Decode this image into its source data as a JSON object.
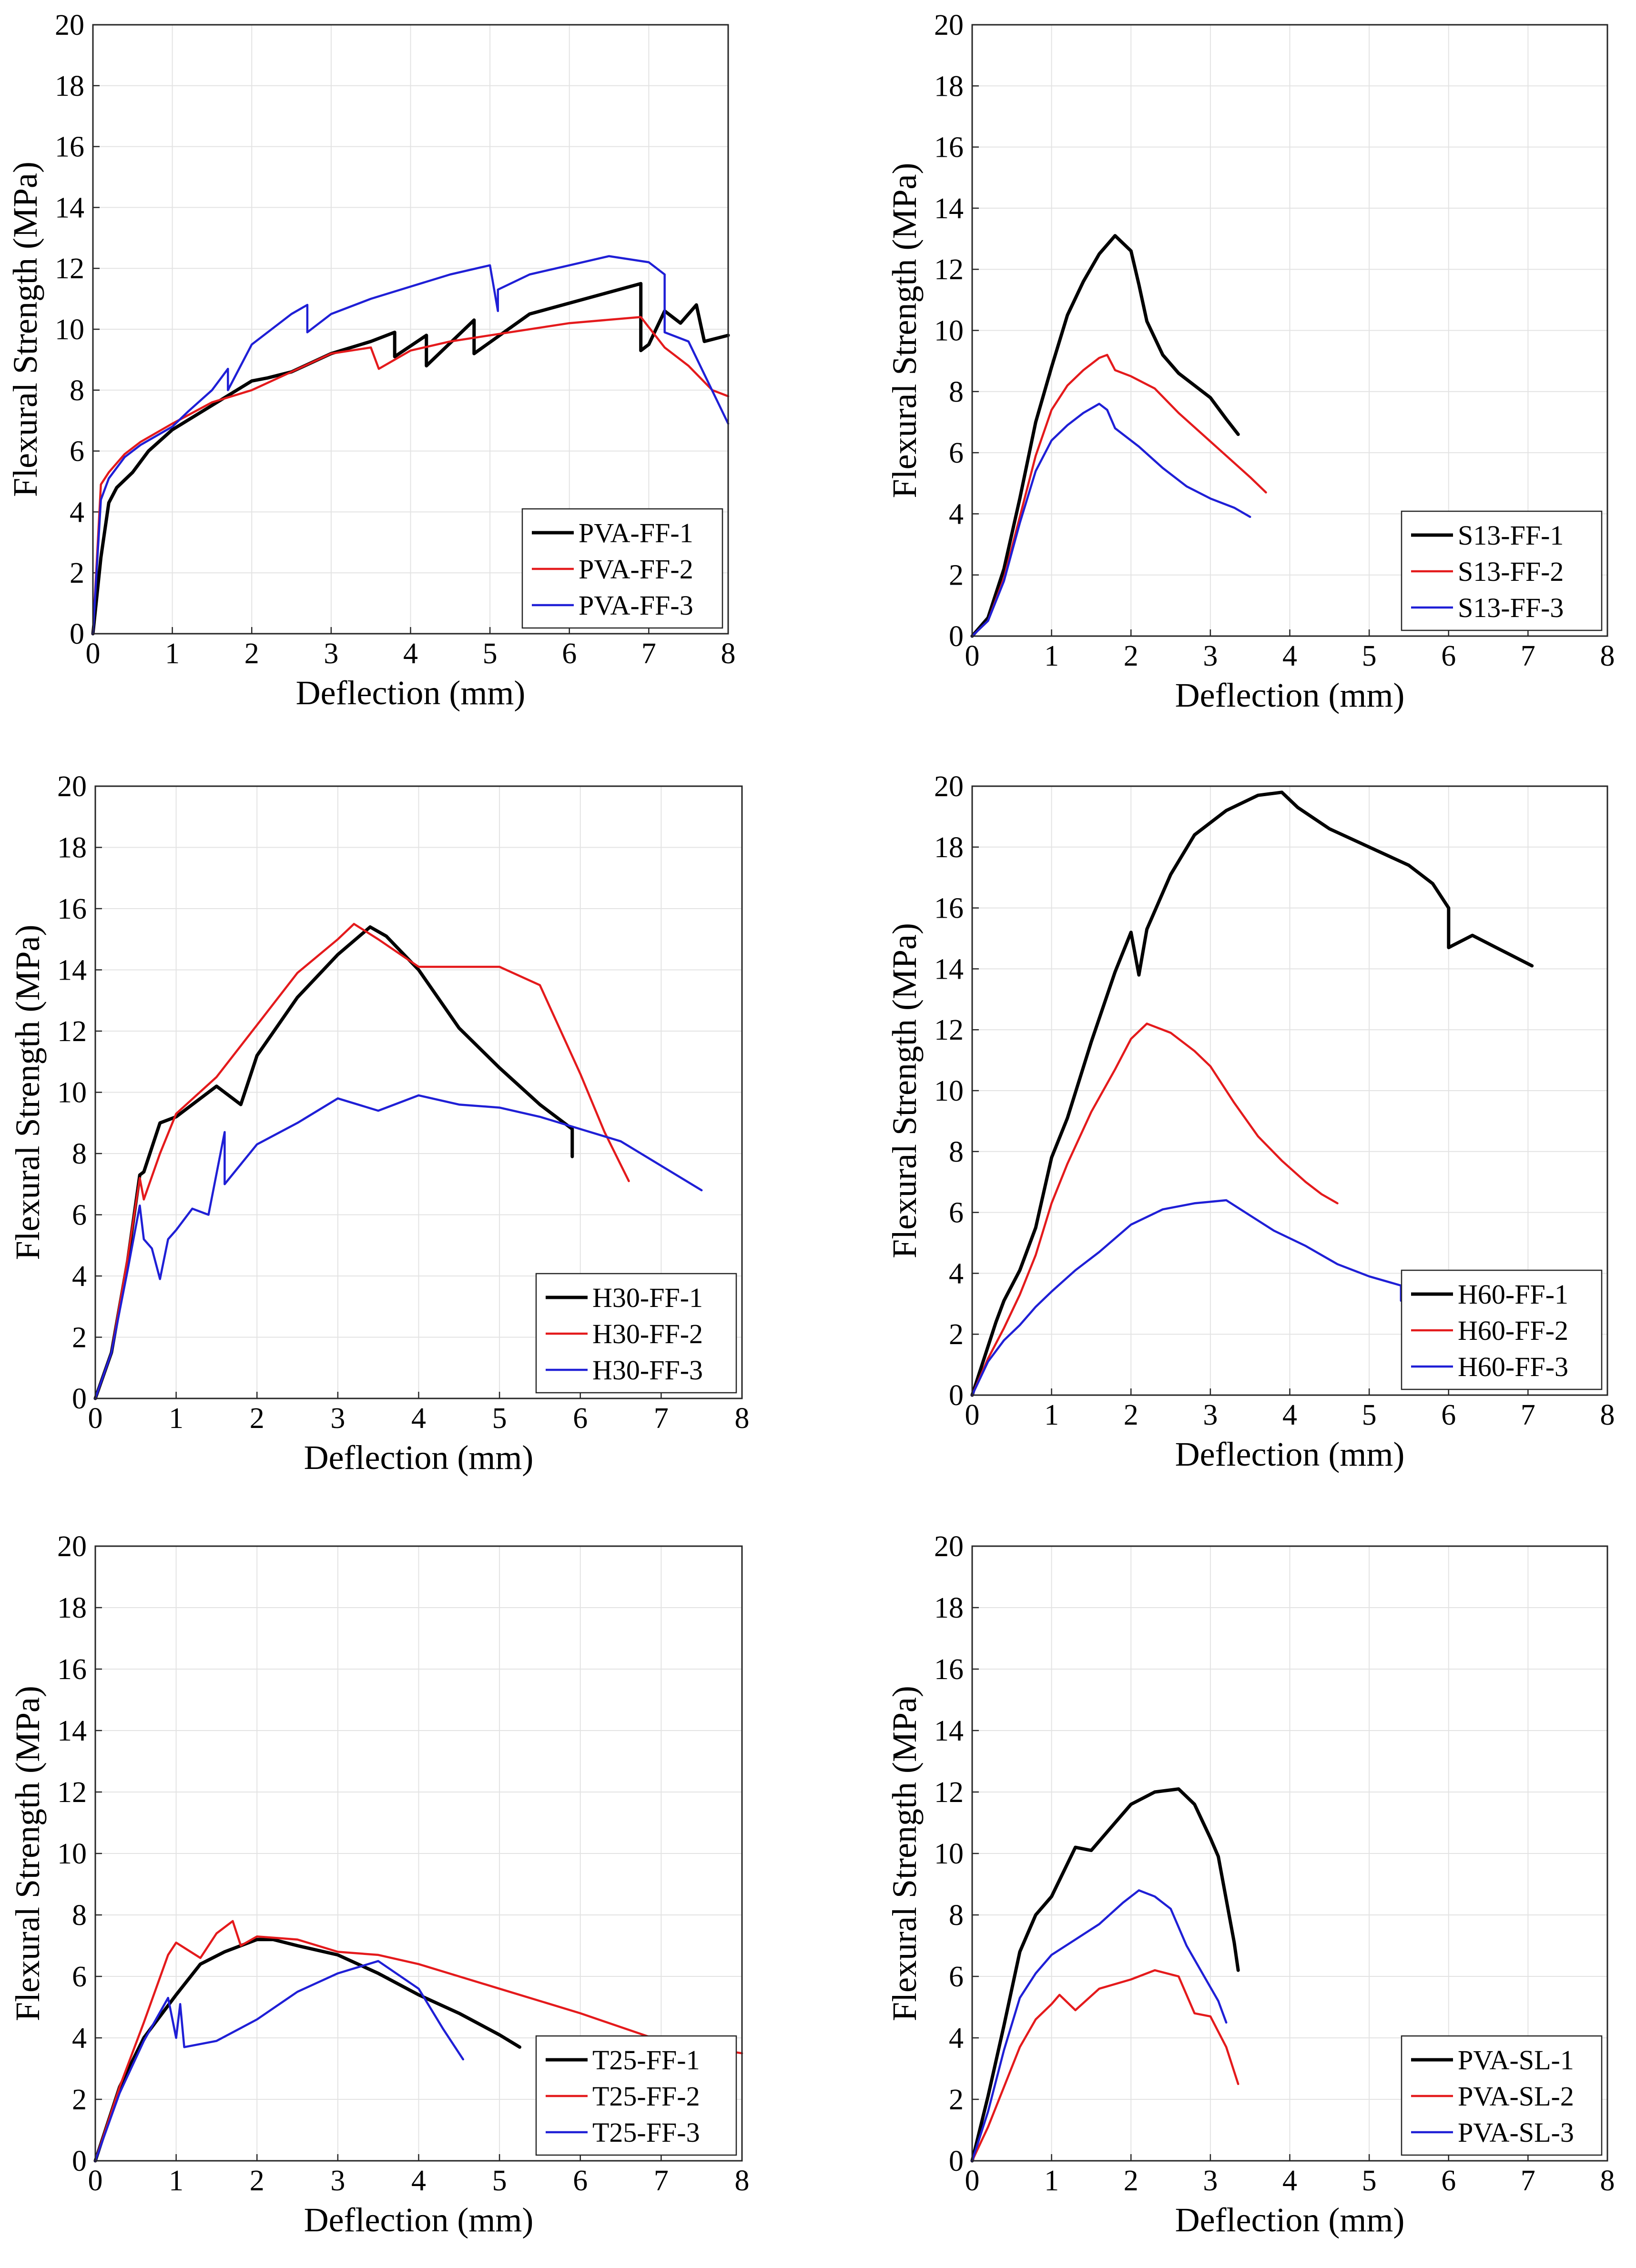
{
  "colors": {
    "series1": "#000000",
    "series2": "#e41a1c",
    "series3": "#1f1fd6"
  },
  "chart_data": [
    {
      "type": "line",
      "xlabel": "Deflection (mm)",
      "ylabel": "Flexural Strength (MPa)",
      "xlim": [
        0,
        8
      ],
      "ylim": [
        0,
        20
      ],
      "xticks": [
        "0",
        "1",
        "2",
        "3",
        "4",
        "5",
        "6",
        "7",
        "8"
      ],
      "yticks": [
        "0",
        "2",
        "4",
        "6",
        "8",
        "10",
        "12",
        "14",
        "16",
        "18",
        "20"
      ],
      "grid": true,
      "legend_position": "bottom-right",
      "series": [
        {
          "name": "PVA-FF-1",
          "x": [
            0,
            0.1,
            0.2,
            0.3,
            0.5,
            0.7,
            1,
            1.5,
            2,
            2.2,
            2.5,
            3,
            3.5,
            3.8,
            3.8,
            4.2,
            4.2,
            4.8,
            4.8,
            5.5,
            6.9,
            6.9,
            7,
            7.2,
            7.4,
            7.6,
            7.7,
            8
          ],
          "y": [
            0,
            2.5,
            4.3,
            4.8,
            5.3,
            6,
            6.7,
            7.5,
            8.3,
            8.4,
            8.6,
            9.2,
            9.6,
            9.9,
            9.1,
            9.8,
            8.8,
            10.3,
            9.2,
            10.5,
            11.5,
            9.3,
            9.5,
            10.6,
            10.2,
            10.8,
            9.6,
            9.8
          ]
        },
        {
          "name": "PVA-FF-2",
          "x": [
            0,
            0.1,
            0.2,
            0.4,
            0.6,
            1,
            1.5,
            2,
            2.5,
            3,
            3.5,
            3.6,
            4,
            4.5,
            5,
            6,
            6.9,
            7.2,
            7.5,
            7.8,
            8
          ],
          "y": [
            0,
            4.9,
            5.3,
            5.9,
            6.3,
            6.9,
            7.6,
            8,
            8.6,
            9.2,
            9.4,
            8.7,
            9.3,
            9.6,
            9.8,
            10.2,
            10.4,
            9.4,
            8.8,
            8,
            7.8
          ]
        },
        {
          "name": "PVA-FF-3",
          "x": [
            0,
            0.1,
            0.2,
            0.4,
            0.6,
            1,
            1.2,
            1.5,
            1.7,
            1.7,
            2,
            2.5,
            2.7,
            2.7,
            3,
            3.5,
            4,
            4.5,
            5,
            5.1,
            5.1,
            5.5,
            6,
            6.5,
            7,
            7.2,
            7.2,
            7.5,
            8
          ],
          "y": [
            0,
            4.4,
            5.1,
            5.8,
            6.2,
            6.8,
            7.3,
            8,
            8.7,
            8,
            9.5,
            10.5,
            10.8,
            9.9,
            10.5,
            11,
            11.4,
            11.8,
            12.1,
            10.6,
            11.3,
            11.8,
            12.1,
            12.4,
            12.2,
            11.8,
            9.9,
            9.6,
            6.9
          ]
        }
      ]
    },
    {
      "type": "line",
      "xlabel": "Deflection (mm)",
      "ylabel": "Flexural Strength (MPa)",
      "xlim": [
        0,
        8
      ],
      "ylim": [
        0,
        20
      ],
      "xticks": [
        "0",
        "1",
        "2",
        "3",
        "4",
        "5",
        "6",
        "7",
        "8"
      ],
      "yticks": [
        "0",
        "2",
        "4",
        "6",
        "8",
        "10",
        "12",
        "14",
        "16",
        "18",
        "20"
      ],
      "grid": true,
      "legend_position": "bottom-right",
      "series": [
        {
          "name": "S13-FF-1",
          "x": [
            0,
            0.2,
            0.4,
            0.6,
            0.8,
            1,
            1.2,
            1.4,
            1.6,
            1.8,
            2,
            2.1,
            2.2,
            2.4,
            2.6,
            2.8,
            3,
            3.2,
            3.35
          ],
          "y": [
            0,
            0.6,
            2.2,
            4.5,
            7,
            8.8,
            10.5,
            11.6,
            12.5,
            13.1,
            12.6,
            11.5,
            10.3,
            9.2,
            8.6,
            8.2,
            7.8,
            7.1,
            6.6
          ]
        },
        {
          "name": "S13-FF-2",
          "x": [
            0,
            0.2,
            0.4,
            0.6,
            0.8,
            1,
            1.2,
            1.4,
            1.6,
            1.7,
            1.8,
            2,
            2.3,
            2.6,
            2.9,
            3.2,
            3.5,
            3.7
          ],
          "y": [
            0,
            0.5,
            1.9,
            3.9,
            5.9,
            7.4,
            8.2,
            8.7,
            9.1,
            9.2,
            8.7,
            8.5,
            8.1,
            7.3,
            6.6,
            5.9,
            5.2,
            4.7
          ]
        },
        {
          "name": "S13-FF-3",
          "x": [
            0,
            0.2,
            0.4,
            0.6,
            0.8,
            1,
            1.2,
            1.4,
            1.6,
            1.7,
            1.8,
            2.1,
            2.4,
            2.7,
            3,
            3.3,
            3.5
          ],
          "y": [
            0,
            0.5,
            1.8,
            3.7,
            5.4,
            6.4,
            6.9,
            7.3,
            7.6,
            7.4,
            6.8,
            6.2,
            5.5,
            4.9,
            4.5,
            4.2,
            3.9
          ]
        }
      ]
    },
    {
      "type": "line",
      "xlabel": "Deflection (mm)",
      "ylabel": "Flexural Strength (MPa)",
      "xlim": [
        0,
        8
      ],
      "ylim": [
        0,
        20
      ],
      "xticks": [
        "0",
        "1",
        "2",
        "3",
        "4",
        "5",
        "6",
        "7",
        "8"
      ],
      "yticks": [
        "0",
        "2",
        "4",
        "6",
        "8",
        "10",
        "12",
        "14",
        "16",
        "18",
        "20"
      ],
      "grid": true,
      "legend_position": "bottom-right",
      "series": [
        {
          "name": "H30-FF-1",
          "x": [
            0,
            0.2,
            0.4,
            0.55,
            0.6,
            0.8,
            1,
            1.2,
            1.5,
            1.8,
            2,
            2.5,
            3,
            3.4,
            3.6,
            4,
            4.5,
            5,
            5.5,
            5.9,
            5.9
          ],
          "y": [
            0,
            1.5,
            4.5,
            7.3,
            7.4,
            9,
            9.2,
            9.6,
            10.2,
            9.6,
            11.2,
            13.1,
            14.5,
            15.4,
            15.1,
            14,
            12.1,
            10.8,
            9.6,
            8.8,
            7.9
          ]
        },
        {
          "name": "H30-FF-2",
          "x": [
            0,
            0.2,
            0.4,
            0.55,
            0.6,
            0.8,
            1,
            1.5,
            2,
            2.5,
            3,
            3.2,
            3.5,
            4,
            4.5,
            5,
            5.5,
            6,
            6.3,
            6.6
          ],
          "y": [
            0,
            1.5,
            4.6,
            7.2,
            6.5,
            8,
            9.3,
            10.5,
            12.2,
            13.9,
            15,
            15.5,
            15,
            14.1,
            14.1,
            14.1,
            13.5,
            10.6,
            8.7,
            7.1
          ]
        },
        {
          "name": "H30-FF-3",
          "x": [
            0,
            0.2,
            0.4,
            0.55,
            0.6,
            0.7,
            0.8,
            0.9,
            1,
            1.2,
            1.4,
            1.6,
            1.6,
            2,
            2.5,
            3,
            3.5,
            4,
            4.5,
            5,
            5.5,
            6,
            6.5,
            7,
            7.5
          ],
          "y": [
            0,
            1.5,
            4.2,
            6.3,
            5.2,
            4.9,
            3.9,
            5.2,
            5.5,
            6.2,
            6,
            8.7,
            7,
            8.3,
            9,
            9.8,
            9.4,
            9.9,
            9.6,
            9.5,
            9.2,
            8.8,
            8.4,
            7.6,
            6.8
          ]
        }
      ]
    },
    {
      "type": "line",
      "xlabel": "Deflection (mm)",
      "ylabel": "Flexural Strength (MPa)",
      "xlim": [
        0,
        8
      ],
      "ylim": [
        0,
        20
      ],
      "xticks": [
        "0",
        "1",
        "2",
        "3",
        "4",
        "5",
        "6",
        "7",
        "8"
      ],
      "yticks": [
        "0",
        "2",
        "4",
        "6",
        "8",
        "10",
        "12",
        "14",
        "16",
        "18",
        "20"
      ],
      "grid": true,
      "legend_position": "bottom-right",
      "series": [
        {
          "name": "H60-FF-1",
          "x": [
            0,
            0.2,
            0.3,
            0.4,
            0.6,
            0.8,
            1,
            1.2,
            1.5,
            1.8,
            2,
            2.1,
            2.2,
            2.5,
            2.8,
            3.2,
            3.6,
            3.9,
            4.1,
            4.5,
            5,
            5.5,
            5.8,
            6,
            6,
            6.3,
            6.6,
            7.05
          ],
          "y": [
            0,
            1.6,
            2.4,
            3.1,
            4.1,
            5.5,
            7.8,
            9.1,
            11.6,
            13.9,
            15.2,
            13.8,
            15.3,
            17.1,
            18.4,
            19.2,
            19.7,
            19.8,
            19.3,
            18.6,
            18,
            17.4,
            16.8,
            16,
            14.7,
            15.1,
            14.7,
            14.1
          ]
        },
        {
          "name": "H60-FF-2",
          "x": [
            0,
            0.2,
            0.4,
            0.6,
            0.8,
            1,
            1.2,
            1.5,
            1.8,
            2,
            2.2,
            2.5,
            2.8,
            3,
            3.3,
            3.6,
            3.9,
            4.2,
            4.4,
            4.6
          ],
          "y": [
            0,
            1.2,
            2.2,
            3.3,
            4.6,
            6.3,
            7.6,
            9.3,
            10.7,
            11.7,
            12.2,
            11.9,
            11.3,
            10.8,
            9.6,
            8.5,
            7.7,
            7,
            6.6,
            6.3
          ]
        },
        {
          "name": "H60-FF-3",
          "x": [
            0,
            0.2,
            0.4,
            0.6,
            0.8,
            1,
            1.3,
            1.6,
            2,
            2.4,
            2.8,
            3.2,
            3.5,
            3.8,
            4.2,
            4.6,
            5,
            5.4,
            5.4
          ],
          "y": [
            0,
            1.1,
            1.8,
            2.3,
            2.9,
            3.4,
            4.1,
            4.7,
            5.6,
            6.1,
            6.3,
            6.4,
            5.9,
            5.4,
            4.9,
            4.3,
            3.9,
            3.6,
            3.1
          ]
        }
      ]
    },
    {
      "type": "line",
      "xlabel": "Deflection (mm)",
      "ylabel": "Flexural Strength (MPa)",
      "xlim": [
        0,
        8
      ],
      "ylim": [
        0,
        20
      ],
      "xticks": [
        "0",
        "1",
        "2",
        "3",
        "4",
        "5",
        "6",
        "7",
        "8"
      ],
      "yticks": [
        "0",
        "2",
        "4",
        "6",
        "8",
        "10",
        "12",
        "14",
        "16",
        "18",
        "20"
      ],
      "grid": true,
      "legend_position": "bottom-right",
      "series": [
        {
          "name": "T25-FF-1",
          "x": [
            0,
            0.3,
            0.6,
            1,
            1.3,
            1.6,
            2,
            2.2,
            2.5,
            3,
            3.5,
            4,
            4.5,
            5,
            5.25
          ],
          "y": [
            0,
            2.4,
            4,
            5.4,
            6.4,
            6.8,
            7.2,
            7.2,
            7,
            6.7,
            6.1,
            5.4,
            4.8,
            4.1,
            3.7
          ]
        },
        {
          "name": "T25-FF-2",
          "x": [
            0,
            0.3,
            0.6,
            0.9,
            1,
            1.3,
            1.5,
            1.7,
            1.8,
            2,
            2.5,
            3,
            3.5,
            4,
            4.5,
            5,
            6,
            7,
            8
          ],
          "y": [
            0,
            2.4,
            4.5,
            6.7,
            7.1,
            6.6,
            7.4,
            7.8,
            7,
            7.3,
            7.2,
            6.8,
            6.7,
            6.4,
            6,
            5.6,
            4.8,
            3.9,
            3.5
          ]
        },
        {
          "name": "T25-FF-3",
          "x": [
            0,
            0.3,
            0.6,
            0.9,
            1,
            1.05,
            1.1,
            1.5,
            2,
            2.5,
            3,
            3.5,
            4,
            4.3,
            4.55
          ],
          "y": [
            0,
            2.2,
            3.9,
            5.3,
            4,
            5.1,
            3.7,
            3.9,
            4.6,
            5.5,
            6.1,
            6.5,
            5.6,
            4.3,
            3.3
          ]
        }
      ]
    },
    {
      "type": "line",
      "xlabel": "Deflection (mm)",
      "ylabel": "Flexural Strength (MPa)",
      "xlim": [
        0,
        8
      ],
      "ylim": [
        0,
        20
      ],
      "xticks": [
        "0",
        "1",
        "2",
        "3",
        "4",
        "5",
        "6",
        "7",
        "8"
      ],
      "yticks": [
        "0",
        "2",
        "4",
        "6",
        "8",
        "10",
        "12",
        "14",
        "16",
        "18",
        "20"
      ],
      "grid": true,
      "legend_position": "bottom-right",
      "series": [
        {
          "name": "PVA-SL-1",
          "x": [
            0,
            0.2,
            0.4,
            0.6,
            0.8,
            1,
            1.3,
            1.5,
            1.8,
            2,
            2.3,
            2.6,
            2.8,
            3,
            3.1,
            3.2,
            3.3,
            3.35
          ],
          "y": [
            0,
            2.1,
            4.4,
            6.8,
            8,
            8.6,
            10.2,
            10.1,
            11,
            11.6,
            12,
            12.1,
            11.6,
            10.5,
            9.9,
            8.5,
            7.1,
            6.2
          ]
        },
        {
          "name": "PVA-SL-2",
          "x": [
            0,
            0.2,
            0.4,
            0.6,
            0.8,
            1,
            1.1,
            1.3,
            1.6,
            2,
            2.3,
            2.6,
            2.8,
            3,
            3.2,
            3.35
          ],
          "y": [
            0,
            1.1,
            2.4,
            3.7,
            4.6,
            5.1,
            5.4,
            4.9,
            5.6,
            5.9,
            6.2,
            6,
            4.8,
            4.7,
            3.7,
            2.5
          ]
        },
        {
          "name": "PVA-SL-3",
          "x": [
            0,
            0.2,
            0.4,
            0.6,
            0.8,
            1,
            1.3,
            1.6,
            1.9,
            2.1,
            2.3,
            2.5,
            2.7,
            2.9,
            3.1,
            3.2
          ],
          "y": [
            0,
            1.6,
            3.6,
            5.3,
            6.1,
            6.7,
            7.2,
            7.7,
            8.4,
            8.8,
            8.6,
            8.2,
            7,
            6.1,
            5.2,
            4.5
          ]
        }
      ]
    }
  ]
}
